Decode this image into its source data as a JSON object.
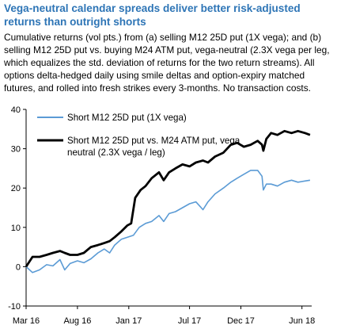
{
  "title": "Vega-neutral calendar spreads deliver better risk-adjusted returns than outright shorts",
  "subtitle": "Cumulative returns (vol pts.) from (a) selling M12 25D put (1X vega); and (b) selling M12 25D put vs. buying M24 ATM put, vega-neutral (2.3X vega per leg, which equalizes the std. deviation of returns for the two return streams). All options delta-hedged daily using smile deltas and option-expiry matched futures, and rolled into fresh strikes every 3-months. No transaction costs.",
  "chart_data": {
    "type": "line",
    "ylim": [
      -10,
      40
    ],
    "yticks": [
      -10,
      0,
      10,
      20,
      30,
      40
    ],
    "xlim": [
      "2016-03-01",
      "2018-06-30"
    ],
    "xticks": [
      {
        "date": "2016-03-01",
        "label": "Mar 16"
      },
      {
        "date": "2016-08-01",
        "label": "Aug 16"
      },
      {
        "date": "2017-01-01",
        "label": "Jan 17"
      },
      {
        "date": "2017-07-01",
        "label": "Jul 17"
      },
      {
        "date": "2017-12-01",
        "label": "Dec 17"
      },
      {
        "date": "2018-06-01",
        "label": "Jun 18"
      }
    ],
    "grid": false,
    "legend_position": "top-left",
    "series": [
      {
        "name": "Short M12 25D put (1X vega)",
        "color": "#5b9bd5",
        "points": [
          [
            "2016-03-01",
            0
          ],
          [
            "2016-03-20",
            -1.5
          ],
          [
            "2016-04-10",
            -0.8
          ],
          [
            "2016-05-01",
            0.5
          ],
          [
            "2016-05-20",
            0.2
          ],
          [
            "2016-06-10",
            1.8
          ],
          [
            "2016-06-24",
            -0.8
          ],
          [
            "2016-07-10",
            0.8
          ],
          [
            "2016-08-01",
            1.5
          ],
          [
            "2016-08-20",
            1.0
          ],
          [
            "2016-09-10",
            2.0
          ],
          [
            "2016-10-01",
            3.5
          ],
          [
            "2016-10-20",
            4.5
          ],
          [
            "2016-11-05",
            3.5
          ],
          [
            "2016-11-20",
            5.5
          ],
          [
            "2016-12-10",
            7.0
          ],
          [
            "2016-12-28",
            7.5
          ],
          [
            "2017-01-15",
            8.0
          ],
          [
            "2017-02-01",
            10.0
          ],
          [
            "2017-02-20",
            11.0
          ],
          [
            "2017-03-10",
            11.5
          ],
          [
            "2017-04-01",
            13.0
          ],
          [
            "2017-04-15",
            11.5
          ],
          [
            "2017-05-01",
            13.5
          ],
          [
            "2017-05-20",
            14.0
          ],
          [
            "2017-06-10",
            15.0
          ],
          [
            "2017-07-01",
            16.0
          ],
          [
            "2017-07-20",
            16.5
          ],
          [
            "2017-08-10",
            14.5
          ],
          [
            "2017-08-25",
            16.5
          ],
          [
            "2017-09-15",
            18.5
          ],
          [
            "2017-10-10",
            20.0
          ],
          [
            "2017-11-01",
            21.5
          ],
          [
            "2017-11-20",
            22.5
          ],
          [
            "2017-12-10",
            23.5
          ],
          [
            "2017-12-30",
            24.5
          ],
          [
            "2018-01-20",
            24.5
          ],
          [
            "2018-02-02",
            23.0
          ],
          [
            "2018-02-06",
            19.5
          ],
          [
            "2018-02-15",
            21.0
          ],
          [
            "2018-03-01",
            21.0
          ],
          [
            "2018-03-20",
            20.5
          ],
          [
            "2018-04-10",
            21.5
          ],
          [
            "2018-05-01",
            22.0
          ],
          [
            "2018-05-20",
            21.5
          ],
          [
            "2018-06-10",
            21.8
          ],
          [
            "2018-06-25",
            22.0
          ]
        ]
      },
      {
        "name": "Short M12 25D put vs. M24 ATM put, vega neutral (2.3X vega / leg)",
        "color": "#000000",
        "points": [
          [
            "2016-03-01",
            0
          ],
          [
            "2016-03-20",
            2.5
          ],
          [
            "2016-04-10",
            2.5
          ],
          [
            "2016-05-01",
            3.0
          ],
          [
            "2016-05-20",
            3.5
          ],
          [
            "2016-06-10",
            4.0
          ],
          [
            "2016-06-24",
            3.5
          ],
          [
            "2016-07-10",
            3.0
          ],
          [
            "2016-08-01",
            3.0
          ],
          [
            "2016-08-20",
            3.5
          ],
          [
            "2016-09-10",
            5.0
          ],
          [
            "2016-10-01",
            5.5
          ],
          [
            "2016-10-20",
            6.0
          ],
          [
            "2016-11-05",
            6.5
          ],
          [
            "2016-11-20",
            7.5
          ],
          [
            "2016-12-10",
            9.0
          ],
          [
            "2016-12-28",
            10.5
          ],
          [
            "2017-01-08",
            11.0
          ],
          [
            "2017-01-20",
            17.5
          ],
          [
            "2017-02-05",
            19.5
          ],
          [
            "2017-02-20",
            20.5
          ],
          [
            "2017-03-10",
            22.5
          ],
          [
            "2017-04-01",
            24.0
          ],
          [
            "2017-04-15",
            22.0
          ],
          [
            "2017-05-01",
            24.0
          ],
          [
            "2017-05-20",
            25.0
          ],
          [
            "2017-06-10",
            26.0
          ],
          [
            "2017-07-01",
            25.5
          ],
          [
            "2017-07-20",
            26.5
          ],
          [
            "2017-08-10",
            27.0
          ],
          [
            "2017-08-25",
            26.5
          ],
          [
            "2017-09-15",
            28.0
          ],
          [
            "2017-10-10",
            29.0
          ],
          [
            "2017-11-01",
            31.0
          ],
          [
            "2017-11-20",
            31.5
          ],
          [
            "2017-12-10",
            30.5
          ],
          [
            "2017-12-30",
            31.0
          ],
          [
            "2018-01-20",
            32.0
          ],
          [
            "2018-02-02",
            31.0
          ],
          [
            "2018-02-06",
            29.5
          ],
          [
            "2018-02-15",
            32.5
          ],
          [
            "2018-03-01",
            34.0
          ],
          [
            "2018-03-20",
            33.5
          ],
          [
            "2018-04-10",
            34.5
          ],
          [
            "2018-05-01",
            34.0
          ],
          [
            "2018-05-20",
            34.5
          ],
          [
            "2018-06-10",
            34.0
          ],
          [
            "2018-06-25",
            33.5
          ]
        ]
      }
    ]
  }
}
